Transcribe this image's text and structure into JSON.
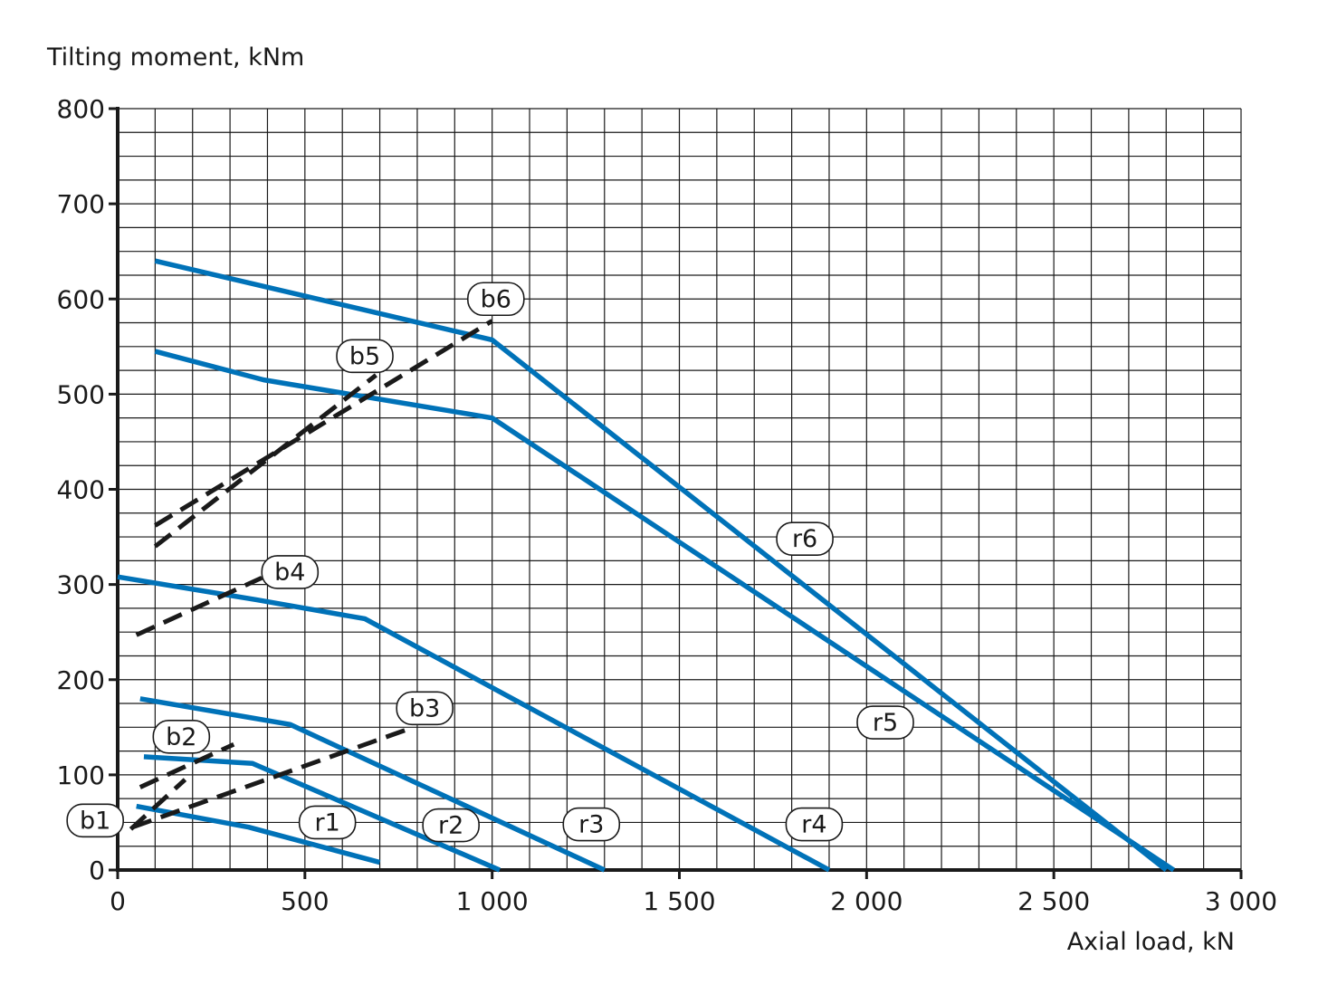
{
  "chart_data": {
    "type": "line",
    "ylabel": "Tilting moment, kNm",
    "xlabel": "Axial load, kN",
    "xlim": [
      0,
      3000
    ],
    "ylim": [
      0,
      800
    ],
    "x_ticks": [
      0,
      500,
      1000,
      1500,
      2000,
      2500,
      3000
    ],
    "x_tick_labels": [
      "0",
      "500",
      "1 000",
      "1 500",
      "2 000",
      "2 500",
      "3 000"
    ],
    "y_ticks": [
      0,
      100,
      200,
      300,
      400,
      500,
      600,
      700,
      800
    ],
    "y_tick_labels": [
      "0",
      "100",
      "200",
      "300",
      "400",
      "500",
      "600",
      "700",
      "800"
    ],
    "grid": true,
    "colors": {
      "rating_curve": "#0072b8",
      "bolt_curve": "#1a1a1a",
      "grid": "#1a1a1a"
    },
    "series": [
      {
        "name": "r1",
        "style": "solid",
        "x": [
          50,
          350,
          700
        ],
        "y": [
          67,
          45,
          8
        ]
      },
      {
        "name": "r2",
        "style": "solid",
        "x": [
          70,
          360,
          1020
        ],
        "y": [
          119,
          112,
          0
        ]
      },
      {
        "name": "r3",
        "style": "solid",
        "x": [
          60,
          460,
          1300
        ],
        "y": [
          180,
          153,
          0
        ]
      },
      {
        "name": "r4",
        "style": "solid",
        "x": [
          0,
          370,
          660,
          1900
        ],
        "y": [
          308,
          284,
          264,
          0
        ]
      },
      {
        "name": "r5",
        "style": "solid",
        "x": [
          100,
          390,
          1000,
          2820
        ],
        "y": [
          545,
          515,
          475,
          0
        ]
      },
      {
        "name": "r6",
        "style": "solid",
        "x": [
          100,
          1000,
          2800
        ],
        "y": [
          640,
          557,
          0
        ]
      },
      {
        "name": "b1",
        "style": "dashed",
        "x": [
          35,
          180
        ],
        "y": [
          43,
          95
        ]
      },
      {
        "name": "b2",
        "style": "dashed",
        "x": [
          60,
          310
        ],
        "y": [
          87,
          132
        ]
      },
      {
        "name": "b3",
        "style": "dashed",
        "x": [
          40,
          790
        ],
        "y": [
          45,
          150
        ]
      },
      {
        "name": "b4",
        "style": "dashed",
        "x": [
          50,
          385
        ],
        "y": [
          247,
          307
        ]
      },
      {
        "name": "b5",
        "style": "dashed",
        "x": [
          100,
          690
        ],
        "y": [
          340,
          520
        ]
      },
      {
        "name": "b6",
        "style": "dashed",
        "x": [
          100,
          1000
        ],
        "y": [
          362,
          577
        ]
      }
    ],
    "labels": [
      {
        "text": "b1",
        "x": -60,
        "y": 52
      },
      {
        "text": "b2",
        "x": 170,
        "y": 140
      },
      {
        "text": "b3",
        "x": 820,
        "y": 170
      },
      {
        "text": "b4",
        "x": 460,
        "y": 313
      },
      {
        "text": "b5",
        "x": 660,
        "y": 540
      },
      {
        "text": "b6",
        "x": 1010,
        "y": 600
      },
      {
        "text": "r1",
        "x": 560,
        "y": 50
      },
      {
        "text": "r2",
        "x": 890,
        "y": 47
      },
      {
        "text": "r3",
        "x": 1265,
        "y": 48
      },
      {
        "text": "r4",
        "x": 1860,
        "y": 48
      },
      {
        "text": "r5",
        "x": 2050,
        "y": 155
      },
      {
        "text": "r6",
        "x": 1835,
        "y": 348
      }
    ]
  }
}
